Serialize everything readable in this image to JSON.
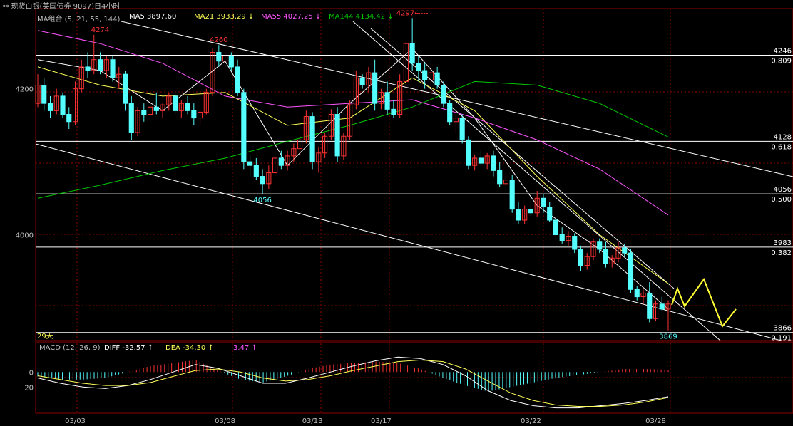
{
  "header": {
    "title": "现货白银(英国债券 9097)日4小时",
    "ma_group": "MA组合 (5, 21, 55, 144)",
    "ma5": "MA5 3897.60",
    "ma21": "MA21 3933.29 ↓",
    "ma55": "MA55 4027.25 ↓",
    "ma144": "MA144 4134.42 ↓"
  },
  "macd_header": {
    "label": "MACD (12, 26, 9)",
    "diff": "DIFF -32.57 ↑",
    "dea": "DEA -34.30 ↑",
    "hist": "3.47 ↑"
  },
  "period_label": "29天",
  "colors": {
    "up": "#ff3232",
    "down": "#54ffff",
    "ma5": "#ffffff",
    "ma21": "#ffff55",
    "ma55": "#ff55ff",
    "ma144": "#00c800",
    "forecast": "#ffff33",
    "grid": "#8b0000",
    "hline": "#ffffff"
  },
  "chart_data": [
    {
      "type": "candlestick",
      "title": "现货白银 4小时",
      "x_labels": [
        "03/03",
        "03/08",
        "03/13",
        "03/17",
        "03/22",
        "03/28"
      ],
      "y_tick_labels": [
        4200,
        4000
      ],
      "ylim": [
        3855,
        4310
      ],
      "price_annotations": [
        {
          "label": "4274",
          "value": 4274
        },
        {
          "label": "4260",
          "value": 4260
        },
        {
          "label": "4297←---",
          "value": 4297
        },
        {
          "label": "4056",
          "value": 4056
        },
        {
          "label": "3869",
          "value": 3869
        }
      ],
      "fib_levels": [
        {
          "price": 4246,
          "ratio": "0.809"
        },
        {
          "price": 4128,
          "ratio": "0.618"
        },
        {
          "price": 4056,
          "ratio": "0.500"
        },
        {
          "price": 3983,
          "ratio": "0.382"
        },
        {
          "price": 3866,
          "ratio": "0.191"
        }
      ],
      "candles": [
        [
          4180,
          4220,
          4175,
          4205
        ],
        [
          4205,
          4215,
          4170,
          4180
        ],
        [
          4180,
          4190,
          4160,
          4170
        ],
        [
          4170,
          4200,
          4165,
          4190
        ],
        [
          4190,
          4195,
          4160,
          4165
        ],
        [
          4165,
          4175,
          4145,
          4155
        ],
        [
          4155,
          4210,
          4150,
          4200
        ],
        [
          4200,
          4240,
          4195,
          4230
        ],
        [
          4230,
          4250,
          4215,
          4225
        ],
        [
          4225,
          4274,
          4220,
          4240
        ],
        [
          4240,
          4250,
          4220,
          4225
        ],
        [
          4225,
          4245,
          4215,
          4240
        ],
        [
          4240,
          4245,
          4210,
          4215
        ],
        [
          4215,
          4230,
          4200,
          4220
        ],
        [
          4220,
          4225,
          4170,
          4180
        ],
        [
          4180,
          4190,
          4130,
          4140
        ],
        [
          4140,
          4175,
          4135,
          4170
        ],
        [
          4170,
          4180,
          4155,
          4165
        ],
        [
          4165,
          4185,
          4160,
          4175
        ],
        [
          4175,
          4195,
          4165,
          4170
        ],
        [
          4170,
          4180,
          4160,
          4178
        ],
        [
          4178,
          4195,
          4170,
          4190
        ],
        [
          4190,
          4195,
          4165,
          4170
        ],
        [
          4170,
          4185,
          4160,
          4180
        ],
        [
          4180,
          4190,
          4165,
          4170
        ],
        [
          4170,
          4180,
          4150,
          4160
        ],
        [
          4160,
          4172,
          4150,
          4168
        ],
        [
          4168,
          4200,
          4165,
          4195
        ],
        [
          4195,
          4255,
          4190,
          4250
        ],
        [
          4250,
          4260,
          4230,
          4238
        ],
        [
          4238,
          4252,
          4228,
          4245
        ],
        [
          4245,
          4250,
          4225,
          4230
        ],
        [
          4230,
          4240,
          4190,
          4195
        ],
        [
          4195,
          4200,
          4090,
          4100
        ],
        [
          4100,
          4110,
          4080,
          4095
        ],
        [
          4095,
          4105,
          4075,
          4080
        ],
        [
          4080,
          4090,
          4056,
          4070
        ],
        [
          4070,
          4095,
          4062,
          4085
        ],
        [
          4085,
          4110,
          4080,
          4105
        ],
        [
          4105,
          4115,
          4090,
          4095
        ],
        [
          4095,
          4115,
          4088,
          4108
        ],
        [
          4108,
          4125,
          4100,
          4118
        ],
        [
          4118,
          4135,
          4110,
          4130
        ],
        [
          4130,
          4170,
          4125,
          4162
        ],
        [
          4162,
          4168,
          4090,
          4100
        ],
        [
          4100,
          4120,
          4085,
          4112
        ],
        [
          4112,
          4140,
          4105,
          4135
        ],
        [
          4135,
          4172,
          4130,
          4165
        ],
        [
          4165,
          4175,
          4100,
          4108
        ],
        [
          4108,
          4140,
          4102,
          4135
        ],
        [
          4135,
          4185,
          4130,
          4178
        ],
        [
          4178,
          4225,
          4172,
          4215
        ],
        [
          4215,
          4220,
          4200,
          4205
        ],
        [
          4205,
          4230,
          4195,
          4222
        ],
        [
          4222,
          4240,
          4170,
          4180
        ],
        [
          4180,
          4200,
          4172,
          4195
        ],
        [
          4195,
          4210,
          4165,
          4172
        ],
        [
          4172,
          4185,
          4160,
          4165
        ],
        [
          4165,
          4220,
          4160,
          4210
        ],
        [
          4210,
          4265,
          4205,
          4262
        ],
        [
          4262,
          4297,
          4225,
          4235
        ],
        [
          4235,
          4245,
          4210,
          4225
        ],
        [
          4225,
          4235,
          4200,
          4212
        ],
        [
          4212,
          4230,
          4205,
          4222
        ],
        [
          4222,
          4230,
          4200,
          4205
        ],
        [
          4205,
          4210,
          4175,
          4180
        ],
        [
          4180,
          4185,
          4150,
          4155
        ],
        [
          4155,
          4170,
          4140,
          4160
        ],
        [
          4160,
          4165,
          4125,
          4130
        ],
        [
          4130,
          4135,
          4090,
          4095
        ],
        [
          4095,
          4110,
          4088,
          4105
        ],
        [
          4105,
          4115,
          4095,
          4098
        ],
        [
          4098,
          4112,
          4090,
          4108
        ],
        [
          4108,
          4115,
          4080,
          4088
        ],
        [
          4088,
          4100,
          4065,
          4070
        ],
        [
          4070,
          4085,
          4060,
          4075
        ],
        [
          4075,
          4082,
          4030,
          4035
        ],
        [
          4035,
          4045,
          4015,
          4020
        ],
        [
          4020,
          4040,
          4015,
          4035
        ],
        [
          4035,
          4045,
          4025,
          4030
        ],
        [
          4030,
          4060,
          4025,
          4050
        ],
        [
          4050,
          4055,
          4030,
          4038
        ],
        [
          4038,
          4045,
          4018,
          4020
        ],
        [
          4020,
          4025,
          3995,
          4000
        ],
        [
          4000,
          4010,
          3988,
          3992
        ],
        [
          3992,
          4005,
          3985,
          3998
        ],
        [
          3998,
          4002,
          3975,
          3980
        ],
        [
          3980,
          3985,
          3950,
          3958
        ],
        [
          3958,
          3975,
          3952,
          3970
        ],
        [
          3970,
          3995,
          3965,
          3990
        ],
        [
          3990,
          3995,
          3975,
          3980
        ],
        [
          3980,
          3990,
          3955,
          3960
        ],
        [
          3960,
          3972,
          3955,
          3968
        ],
        [
          3968,
          3990,
          3962,
          3982
        ],
        [
          3982,
          3988,
          3970,
          3975
        ],
        [
          3975,
          3980,
          3920,
          3925
        ],
        [
          3925,
          3930,
          3910,
          3915
        ],
        [
          3915,
          3925,
          3905,
          3920
        ],
        [
          3920,
          3935,
          3880,
          3885
        ],
        [
          3885,
          3910,
          3882,
          3905
        ],
        [
          3905,
          3915,
          3895,
          3898
        ],
        [
          3898,
          3910,
          3869,
          3905
        ]
      ],
      "moving_averages": [
        {
          "name": "MA5",
          "x": [
            0,
            10,
            20,
            30,
            40,
            50,
            60,
            70,
            80,
            90,
            101
          ],
          "y": [
            4240,
            4225,
            4170,
            4238,
            4095,
            4180,
            4255,
            4160,
            4040,
            3980,
            3898
          ]
        },
        {
          "name": "MA21",
          "x": [
            0,
            10,
            20,
            30,
            40,
            50,
            60,
            70,
            80,
            90,
            101
          ],
          "y": [
            4230,
            4205,
            4190,
            4195,
            4150,
            4160,
            4215,
            4170,
            4080,
            4000,
            3933
          ]
        },
        {
          "name": "MA55",
          "x": [
            0,
            10,
            20,
            30,
            40,
            50,
            60,
            70,
            80,
            90,
            101
          ],
          "y": [
            4280,
            4262,
            4235,
            4190,
            4175,
            4180,
            4185,
            4160,
            4130,
            4090,
            4027
          ]
        },
        {
          "name": "MA144",
          "x": [
            0,
            10,
            20,
            30,
            40,
            50,
            60,
            70,
            80,
            90,
            101
          ],
          "y": [
            4050,
            4068,
            4088,
            4105,
            4128,
            4150,
            4175,
            4210,
            4205,
            4180,
            4134
          ]
        }
      ]
    },
    {
      "type": "bar",
      "title": "MACD (12, 26, 9)",
      "y_tick_labels": [
        0,
        -20
      ],
      "ylim": [
        -55,
        25
      ],
      "diff": [
        -8,
        -15,
        -20,
        -22,
        -18,
        -10,
        0,
        10,
        5,
        -5,
        -15,
        -15,
        -8,
        0,
        8,
        15,
        20,
        18,
        10,
        -5,
        -25,
        -38,
        -45,
        -48,
        -48,
        -45,
        -42,
        -38,
        -33
      ],
      "dea": [
        -5,
        -10,
        -15,
        -18,
        -18,
        -14,
        -6,
        2,
        4,
        0,
        -8,
        -12,
        -10,
        -5,
        2,
        8,
        14,
        16,
        14,
        4,
        -12,
        -28,
        -38,
        -44,
        -46,
        -46,
        -44,
        -40,
        -34
      ],
      "histogram": [
        -6,
        -10,
        -10,
        -8,
        0,
        8,
        12,
        16,
        2,
        -10,
        -14,
        -6,
        4,
        10,
        12,
        14,
        12,
        4,
        -8,
        -18,
        -26,
        -20,
        -14,
        -8,
        -4,
        0,
        4,
        4,
        3
      ]
    }
  ]
}
